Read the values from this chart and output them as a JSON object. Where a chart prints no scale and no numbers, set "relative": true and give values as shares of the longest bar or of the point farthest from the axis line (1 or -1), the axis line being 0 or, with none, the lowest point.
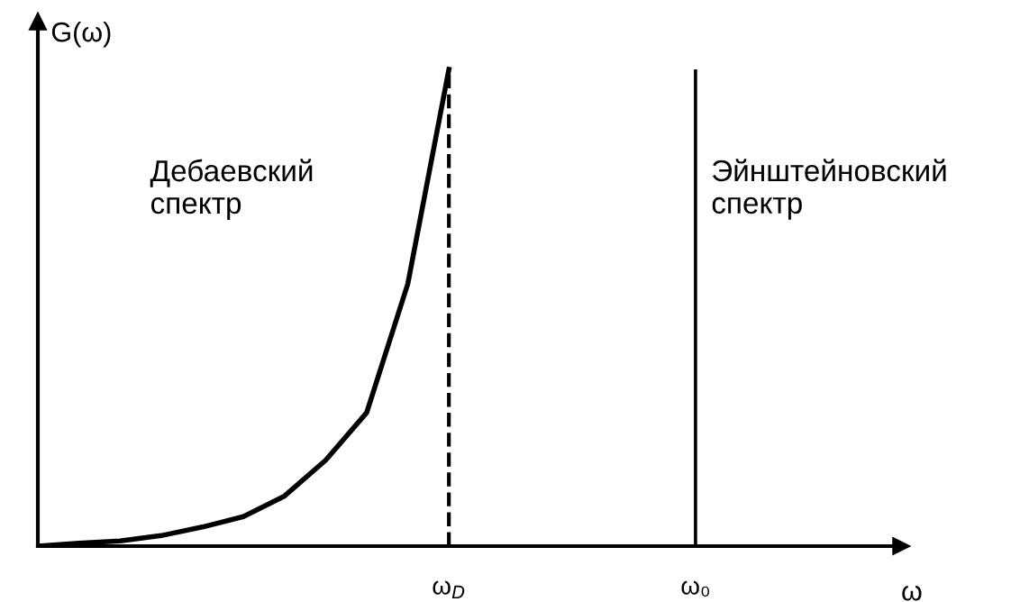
{
  "chart_data": {
    "type": "line",
    "relative": true,
    "ylabel": "G(ω)",
    "xlabel": "ω",
    "categories": [
      null,
      null,
      null,
      null,
      null,
      null,
      null,
      null,
      null,
      null,
      "ω$_{D}$",
      null,
      null,
      null,
      null,
      null,
      "ω₀",
      null,
      null,
      null,
      null,
      null
    ],
    "series": [
      {
        "color": "#000000",
        "values": [
          0,
          0.006,
          0.011,
          0.022,
          0.04,
          0.062,
          0.105,
          0.18,
          0.28,
          0.55,
          1.0,
          null,
          null,
          null,
          null,
          null,
          null,
          null,
          null,
          null,
          null,
          null
        ]
      },
      {
        "type": "bar",
        "color": "#000000",
        "values": [
          null,
          null,
          null,
          null,
          null,
          null,
          null,
          null,
          null,
          null,
          null,
          null,
          null,
          null,
          null,
          null,
          1.0,
          null,
          null,
          null,
          null,
          null
        ]
      }
    ],
    "ref_lines": [
      {
        "axis": "x",
        "value": "ω$_{D}$",
        "line_style": "dashed",
        "color": "#000000"
      }
    ],
    "annotations": [
      "Дебаевский\nспектр",
      "Эйнштейновский\nспектр"
    ],
    "marker": "none",
    "line_style": "solid"
  }
}
